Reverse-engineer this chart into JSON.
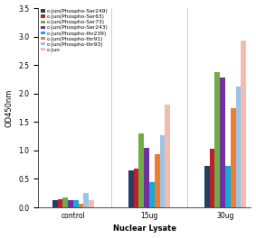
{
  "categories": [
    "control",
    "15ug",
    "30ug"
  ],
  "series": [
    {
      "label": "c-Jun(Phospho-Ser249)",
      "color": "#243F60",
      "values": [
        0.12,
        0.65,
        0.73
      ]
    },
    {
      "label": "c-Jun(Phospho-Ser63)",
      "color": "#BE1E2D",
      "values": [
        0.14,
        0.68,
        1.03
      ]
    },
    {
      "label": "c-Jun(Phospho-Ser73)",
      "color": "#70AD47",
      "values": [
        0.17,
        1.3,
        2.37
      ]
    },
    {
      "label": "c-Jun(Phospho-Ser243)",
      "color": "#7030A0",
      "values": [
        0.12,
        1.04,
        2.28
      ]
    },
    {
      "label": "c-Jun(Phospho-thr239)",
      "color": "#17A9D9",
      "values": [
        0.13,
        0.45,
        0.73
      ]
    },
    {
      "label": "c-Jun(Phospho-thr91)",
      "color": "#ED7D31",
      "values": [
        0.06,
        0.93,
        1.74
      ]
    },
    {
      "label": "c-Jun(Phospho-thr93)",
      "color": "#9DC3E6",
      "values": [
        0.25,
        1.27,
        2.12
      ]
    },
    {
      "label": "c-Jun",
      "color": "#F4BBAF",
      "values": [
        0.13,
        1.8,
        2.93
      ]
    }
  ],
  "ylabel": "OD450nm",
  "xlabel": "Nuclear Lysate",
  "ylim": [
    0,
    3.5
  ],
  "yticks": [
    0,
    0.5,
    1.0,
    1.5,
    2.0,
    2.5,
    3.0,
    3.5
  ],
  "legend_fontsize": 4.2,
  "axis_fontsize": 5.5,
  "label_fontsize": 6.0,
  "background_color": "#FFFFFF"
}
